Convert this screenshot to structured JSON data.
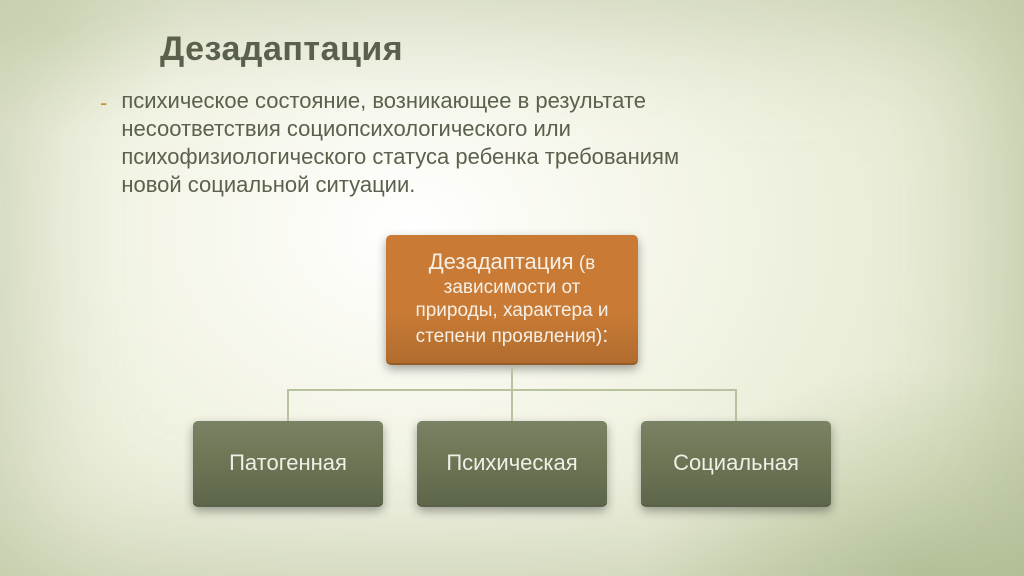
{
  "title": "Дезадаптация",
  "bullet_marker": "-",
  "body": "психическое состояние, возникающее в результате несоответствия социопсихологического или психофизиологического статуса ребенка требованиям новой социальной ситуации.",
  "colors": {
    "title": "#59614c",
    "bullet": "#c98f3f",
    "body_text": "#5a614c",
    "root_box_bg": "#c97b35",
    "root_box_text": "#f5efe6",
    "child_box_bg": "#6e7857",
    "child_box_text": "#eef0e6",
    "connector": "#b9c29e"
  },
  "diagram": {
    "type": "tree",
    "root": {
      "label_major": "Дезадаптация",
      "label_minor": " (в зависимости от природы, характера и степени проявления)",
      "label_tail": ":"
    },
    "children": [
      {
        "label": "Патогенная"
      },
      {
        "label": "Психическая"
      },
      {
        "label": "Социальная"
      }
    ],
    "layout": {
      "child_count": 3,
      "child_width": 190,
      "child_gap": 34,
      "root_width": 252,
      "connector_total_width": 640
    }
  }
}
